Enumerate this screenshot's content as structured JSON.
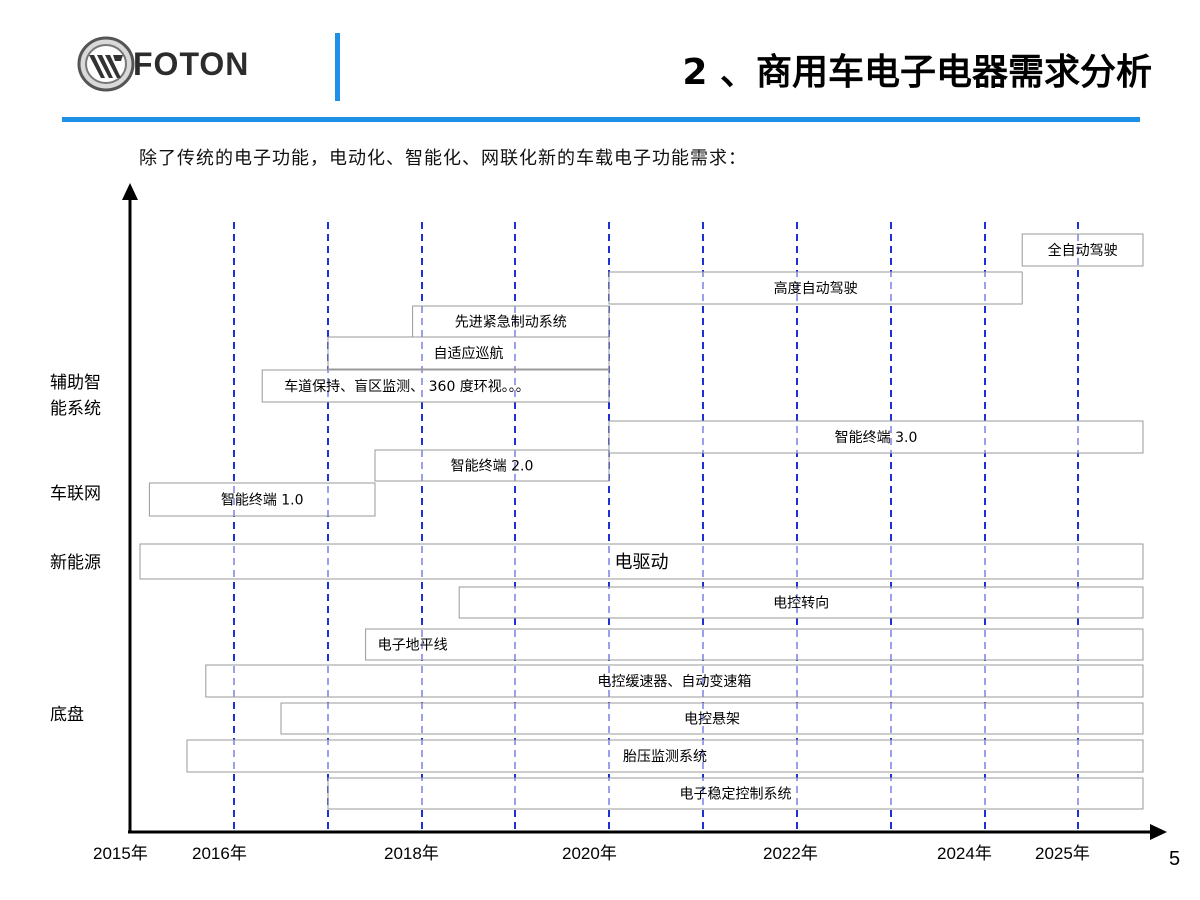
{
  "header": {
    "logo_text": "FOTON",
    "title": "2 、商用车电子电器需求分析"
  },
  "subtitle": "除了传统的电子功能，电动化、智能化、网联化新的车载电子功能需求：",
  "categories": {
    "assist": "辅助智能系统",
    "connected": "车联网",
    "new_energy": "新能源",
    "chassis": "底盘"
  },
  "chart_data": {
    "type": "gantt",
    "years": [
      "2015年",
      "2016年",
      "2018年",
      "2020年",
      "2022年",
      "2024年",
      "2025年"
    ],
    "tasks": [
      {
        "label": "全自动驾驶",
        "category": "辅助智能系统",
        "start": 2024.4,
        "end": 2025.7
      },
      {
        "label": "高度自动驾驶",
        "category": "辅助智能系统",
        "start": 2020.0,
        "end": 2024.4
      },
      {
        "label": "先进紧急制动系统",
        "category": "辅助智能系统",
        "start": 2017.9,
        "end": 2020.0
      },
      {
        "label": "自适应巡航",
        "category": "辅助智能系统",
        "start": 2017.0,
        "end": 2020.0
      },
      {
        "label": "车道保持、盲区监测、 360 度环视。。。",
        "category": "辅助智能系统",
        "start": 2016.3,
        "end": 2020.0
      },
      {
        "label": "智能终端 3.0",
        "category": "车联网",
        "start": 2020.0,
        "end": 2025.7
      },
      {
        "label": "智能终端 2.0",
        "category": "车联网",
        "start": 2017.5,
        "end": 2020.0
      },
      {
        "label": "智能终端 1.0",
        "category": "车联网",
        "start": 2015.1,
        "end": 2017.5
      },
      {
        "label": "电驱动",
        "category": "新能源",
        "start": 2015.0,
        "end": 2025.7
      },
      {
        "label": "电控转向",
        "category": "底盘",
        "start": 2018.4,
        "end": 2025.7
      },
      {
        "label": "电子地平线",
        "category": "底盘",
        "start": 2017.4,
        "end": 2025.7
      },
      {
        "label": "电控缓速器、自动变速箱",
        "category": "底盘",
        "start": 2015.7,
        "end": 2025.7
      },
      {
        "label": "电控悬架",
        "category": "底盘",
        "start": 2016.5,
        "end": 2025.7
      },
      {
        "label": "胎压监测系统",
        "category": "底盘",
        "start": 2015.5,
        "end": 2025.7
      },
      {
        "label": "电子稳定控制系统",
        "category": "底盘",
        "start": 2017.0,
        "end": 2025.7
      }
    ]
  },
  "page_number": "5"
}
